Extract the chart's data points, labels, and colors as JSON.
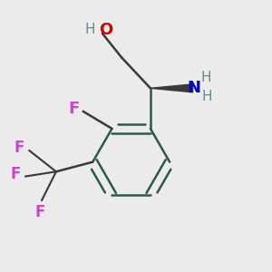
{
  "background_color": "#ebebeb",
  "bond_color": "#3a3a3a",
  "ring_bond_color": "#2a5a4a",
  "atom_colors": {
    "O": "#cc0000",
    "N": "#0000cc",
    "F": "#cc44cc",
    "H": "#6a8a8a",
    "C": "#3a3a3a"
  },
  "bond_width": 1.8,
  "font_size_atom": 13,
  "font_size_H": 11,
  "xlim": [
    -1.3,
    1.5
  ],
  "ylim": [
    -1.6,
    1.1
  ]
}
